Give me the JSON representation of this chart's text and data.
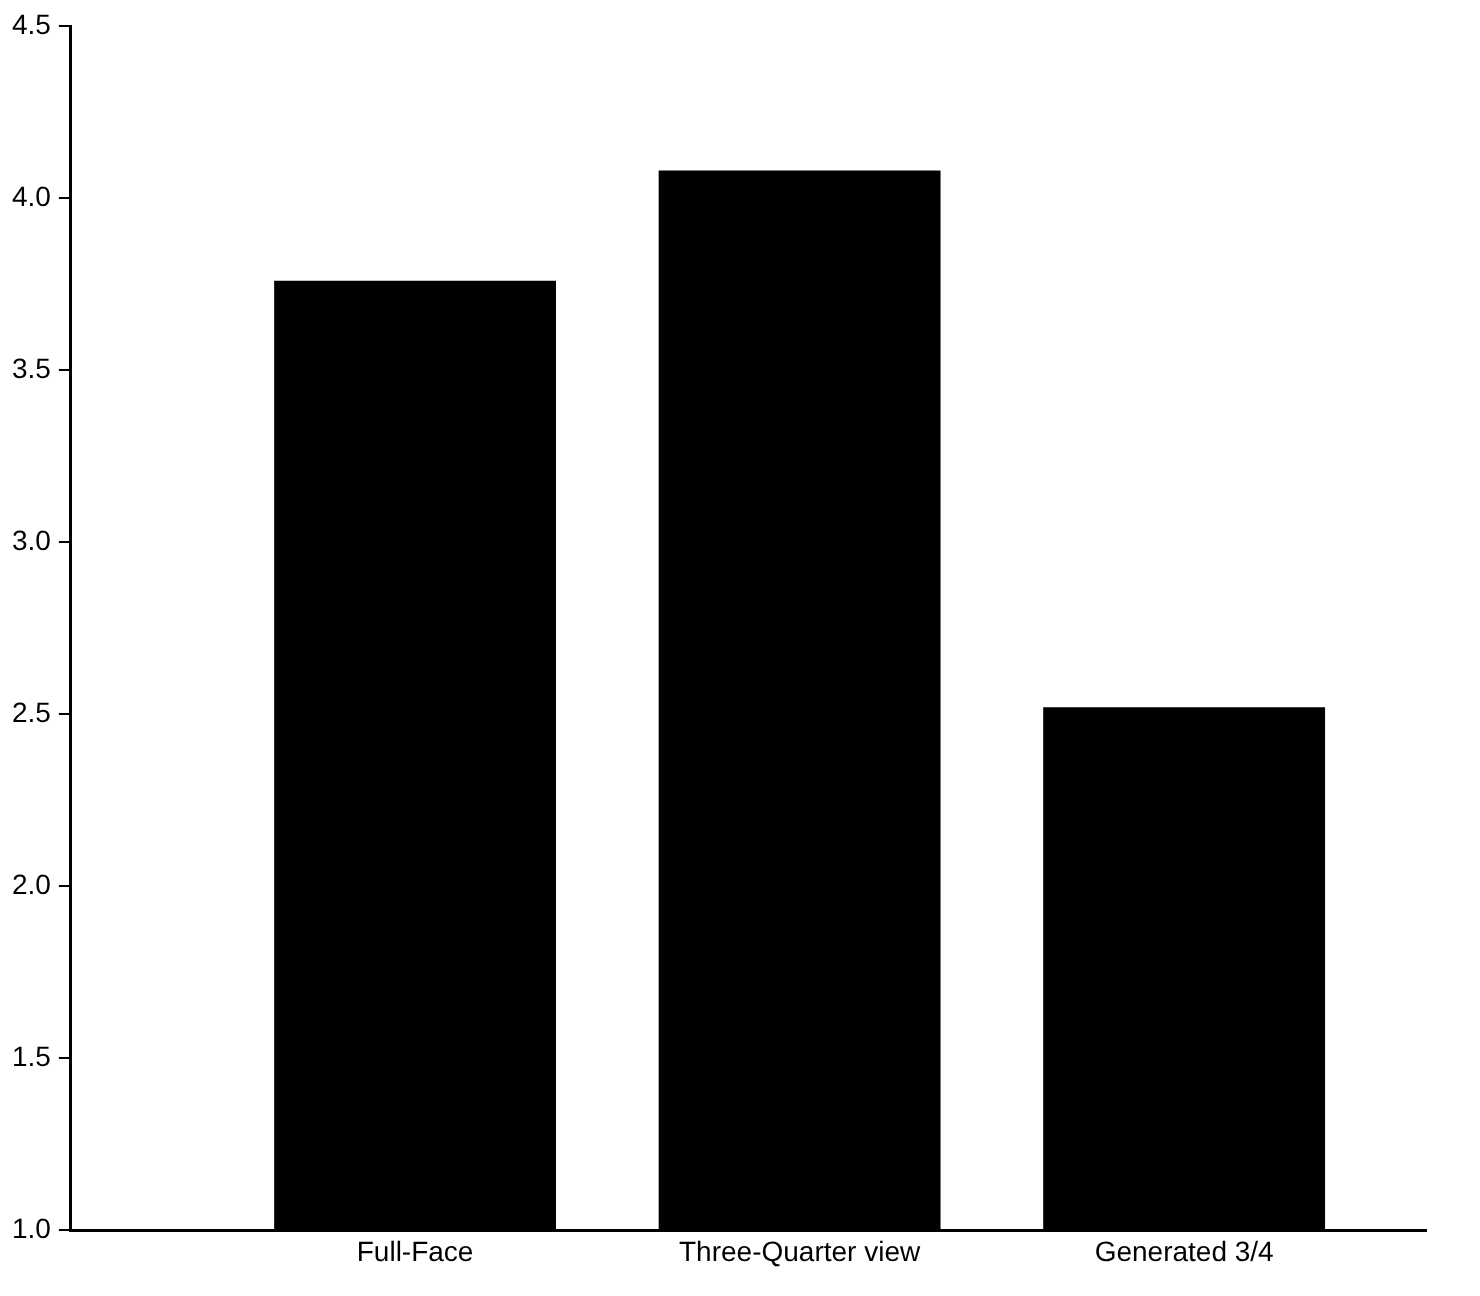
{
  "chart_data": {
    "type": "bar",
    "categories": [
      "Full-Face",
      "Three-Quarter view",
      "Generated 3/4"
    ],
    "values": [
      3.76,
      4.08,
      2.52
    ],
    "color": "#000000",
    "ylim": [
      1,
      4.5
    ],
    "yticks": [
      {
        "value": 1,
        "label": "1.0"
      },
      {
        "value": 1.5,
        "label": "1.5"
      },
      {
        "value": 2,
        "label": "2.0"
      },
      {
        "value": 2.5,
        "label": "2.5"
      },
      {
        "value": 3,
        "label": "3.0"
      },
      {
        "value": 3.5,
        "label": "3.5"
      },
      {
        "value": 4,
        "label": "4.0"
      },
      {
        "value": 4.5,
        "label": "4.5"
      }
    ],
    "grid": false,
    "legend": false
  }
}
